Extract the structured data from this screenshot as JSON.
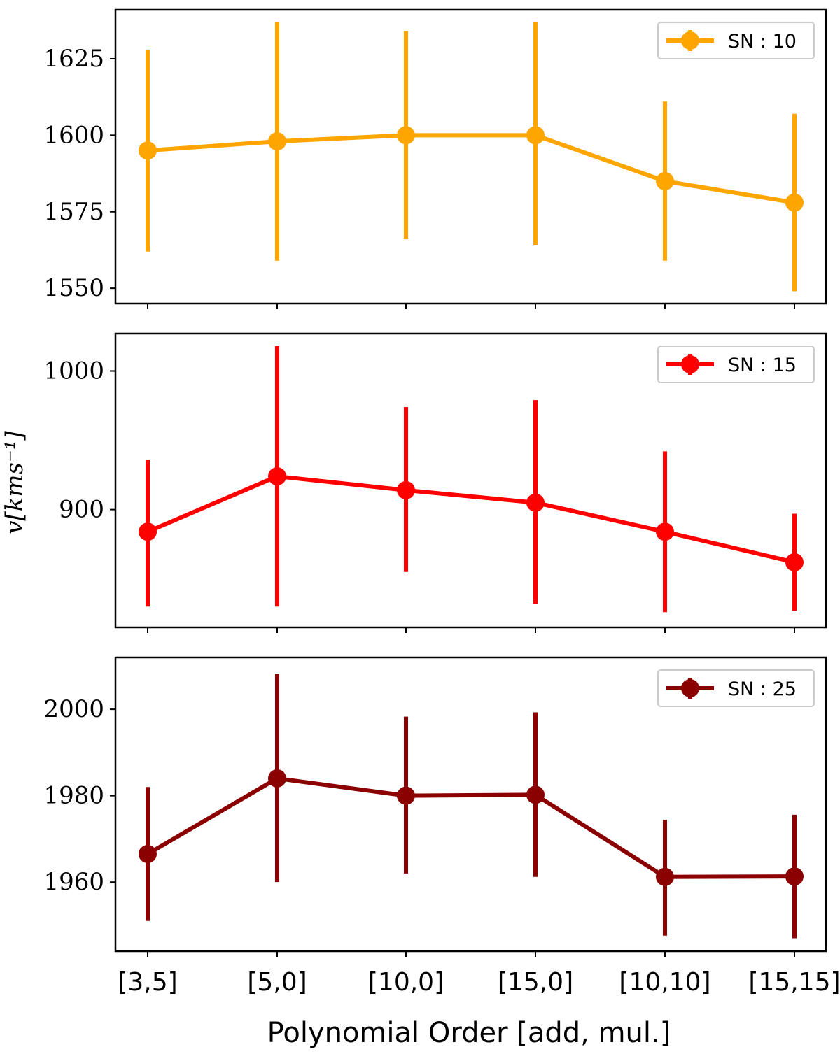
{
  "chart_data": [
    {
      "type": "line",
      "categories": [
        "[3,5]",
        "[5,0]",
        "[10,0]",
        "[15,0]",
        "[10,10]",
        "[15,15]"
      ],
      "series": [
        {
          "name": "SN : 10",
          "color": "#FFA500",
          "values": [
            1595,
            1598,
            1600,
            1600,
            1585,
            1578
          ],
          "err_low": [
            1562,
            1559,
            1566,
            1564,
            1559,
            1549
          ],
          "err_high": [
            1628,
            1637,
            1634,
            1637,
            1611,
            1607
          ]
        }
      ],
      "yticks": [
        1550,
        1575,
        1600,
        1625
      ],
      "ylim": [
        1545,
        1641
      ],
      "legend": "top-right"
    },
    {
      "type": "line",
      "categories": [
        "[3,5]",
        "[5,0]",
        "[10,0]",
        "[15,0]",
        "[10,10]",
        "[15,15]"
      ],
      "series": [
        {
          "name": "SN : 15",
          "color": "#FF0000",
          "values": [
            884,
            924,
            914,
            905,
            884,
            862
          ],
          "err_low": [
            830,
            830,
            855,
            832,
            826,
            827
          ],
          "err_high": [
            936,
            1018,
            974,
            979,
            942,
            897
          ]
        }
      ],
      "yticks": [
        900,
        1000
      ],
      "ylim": [
        815,
        1027
      ],
      "legend": "top-right"
    },
    {
      "type": "line",
      "categories": [
        "[3,5]",
        "[5,0]",
        "[10,0]",
        "[15,0]",
        "[10,10]",
        "[15,15]"
      ],
      "series": [
        {
          "name": "SN : 25",
          "color": "#8B0000",
          "values": [
            1966.5,
            1984,
            1980,
            1980.2,
            1961.2,
            1961.3
          ],
          "err_low": [
            1951,
            1960,
            1962,
            1961.2,
            1947.6,
            1947
          ],
          "err_high": [
            1982,
            2008.2,
            1998.3,
            1999.3,
            1974.4,
            1975.6
          ]
        }
      ],
      "yticks": [
        1960,
        1980,
        2000
      ],
      "ylim": [
        1944,
        2012
      ],
      "legend": "top-right"
    }
  ],
  "axes": {
    "xlabel": "Polynomial Order [add, mul.]",
    "ylabel": "v[kms⁻¹]"
  }
}
